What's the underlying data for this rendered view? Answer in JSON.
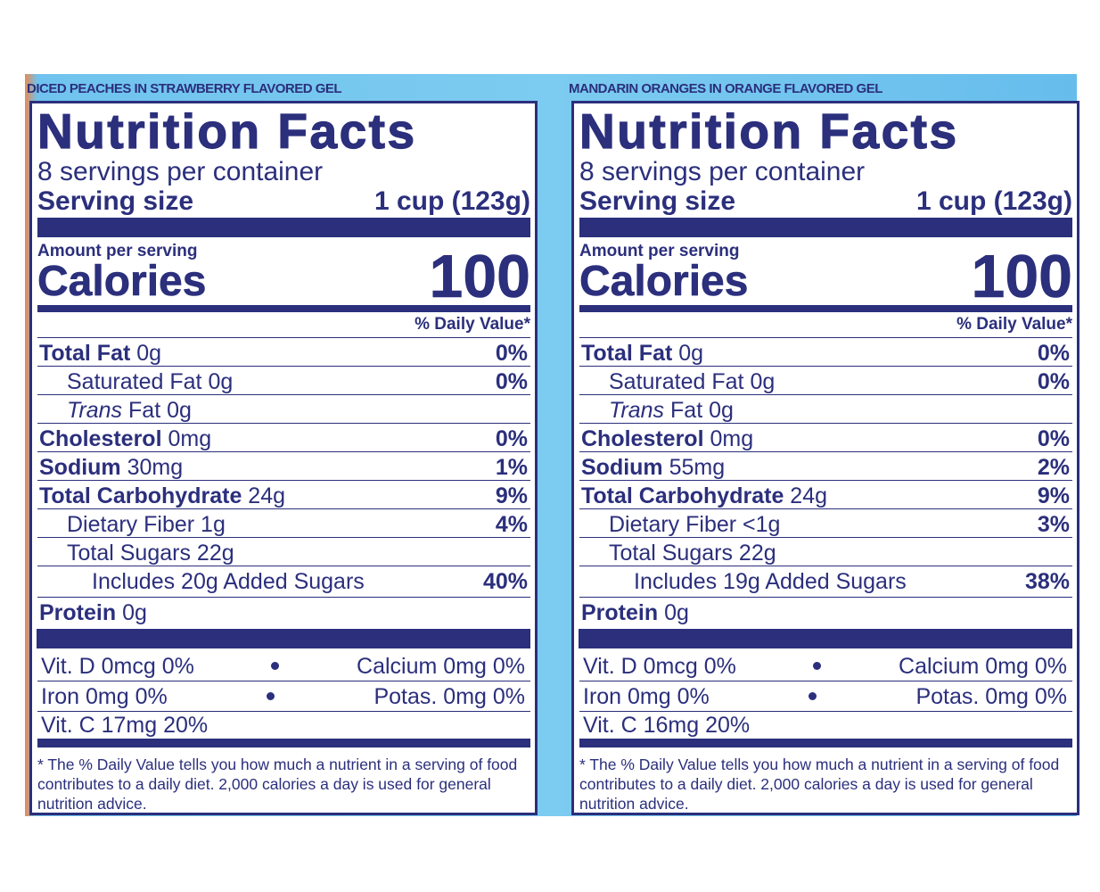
{
  "panels": [
    {
      "product": "DICED PEACHES IN STRAWBERRY FLAVORED GEL",
      "title": "Nutrition Facts",
      "servings": "8 servings per container",
      "serving_size_label": "Serving size",
      "serving_size": "1 cup (123g)",
      "amount_per_serving": "Amount per serving",
      "calories_label": "Calories",
      "calories": "100",
      "dv_header": "% Daily Value*",
      "nutrients": [
        {
          "name": "Total Fat",
          "amount": "0g",
          "dv": "0%",
          "bold": true,
          "indent": 0
        },
        {
          "name": "Saturated Fat",
          "amount": "0g",
          "dv": "0%",
          "bold": false,
          "indent": 1
        },
        {
          "italic": "Trans",
          "name": "Fat",
          "amount": "0g",
          "bold": false,
          "indent": 1
        },
        {
          "name": "Cholesterol",
          "amount": "0mg",
          "dv": "0%",
          "bold": true,
          "indent": 0
        },
        {
          "name": "Sodium",
          "amount": "30mg",
          "dv": "1%",
          "bold": true,
          "indent": 0
        },
        {
          "name": "Total Carbohydrate",
          "amount": "24g",
          "dv": "9%",
          "bold": true,
          "indent": 0
        },
        {
          "name": "Dietary Fiber",
          "amount": "1g",
          "dv": "4%",
          "bold": false,
          "indent": 1
        },
        {
          "name": "Total Sugars",
          "amount": "22g",
          "bold": false,
          "indent": 1
        },
        {
          "name": "Includes 20g Added Sugars",
          "dv": "40%",
          "bold": false,
          "indent": 2
        },
        {
          "name": "Protein",
          "amount": "0g",
          "bold": true,
          "indent": 0
        }
      ],
      "vitamins": [
        [
          "Vit. D 0mcg 0%",
          "Calcium 0mg 0%"
        ],
        [
          "Iron 0mg 0%",
          "Potas. 0mg 0%"
        ],
        [
          "Vit. C 17mg 20%"
        ]
      ],
      "footnote": "* The % Daily Value tells you how much a nutrient in a serving of food contributes to a daily diet. 2,000 calories a day is used for general nutrition advice."
    },
    {
      "product": "MANDARIN ORANGES IN ORANGE FLAVORED GEL",
      "title": "Nutrition Facts",
      "servings": "8 servings per container",
      "serving_size_label": "Serving size",
      "serving_size": "1 cup (123g)",
      "amount_per_serving": "Amount per serving",
      "calories_label": "Calories",
      "calories": "100",
      "dv_header": "% Daily Value*",
      "nutrients": [
        {
          "name": "Total Fat",
          "amount": "0g",
          "dv": "0%",
          "bold": true,
          "indent": 0
        },
        {
          "name": "Saturated Fat",
          "amount": "0g",
          "dv": "0%",
          "bold": false,
          "indent": 1
        },
        {
          "italic": "Trans",
          "name": "Fat",
          "amount": "0g",
          "bold": false,
          "indent": 1
        },
        {
          "name": "Cholesterol",
          "amount": "0mg",
          "dv": "0%",
          "bold": true,
          "indent": 0
        },
        {
          "name": "Sodium",
          "amount": "55mg",
          "dv": "2%",
          "bold": true,
          "indent": 0
        },
        {
          "name": "Total Carbohydrate",
          "amount": "24g",
          "dv": "9%",
          "bold": true,
          "indent": 0
        },
        {
          "name": "Dietary Fiber",
          "amount": "<1g",
          "dv": "3%",
          "bold": false,
          "indent": 1
        },
        {
          "name": "Total Sugars",
          "amount": "22g",
          "bold": false,
          "indent": 1
        },
        {
          "name": "Includes 19g Added Sugars",
          "dv": "38%",
          "bold": false,
          "indent": 2
        },
        {
          "name": "Protein",
          "amount": "0g",
          "bold": true,
          "indent": 0
        }
      ],
      "vitamins": [
        [
          "Vit. D 0mcg 0%",
          "Calcium 0mg 0%"
        ],
        [
          "Iron 0mg 0%",
          "Potas. 0mg 0%"
        ],
        [
          "Vit. C 16mg 20%"
        ]
      ],
      "footnote": "* The % Daily Value tells you how much a nutrient in a serving of food contributes to a daily diet. 2,000 calories a day is used for general nutrition advice."
    }
  ]
}
